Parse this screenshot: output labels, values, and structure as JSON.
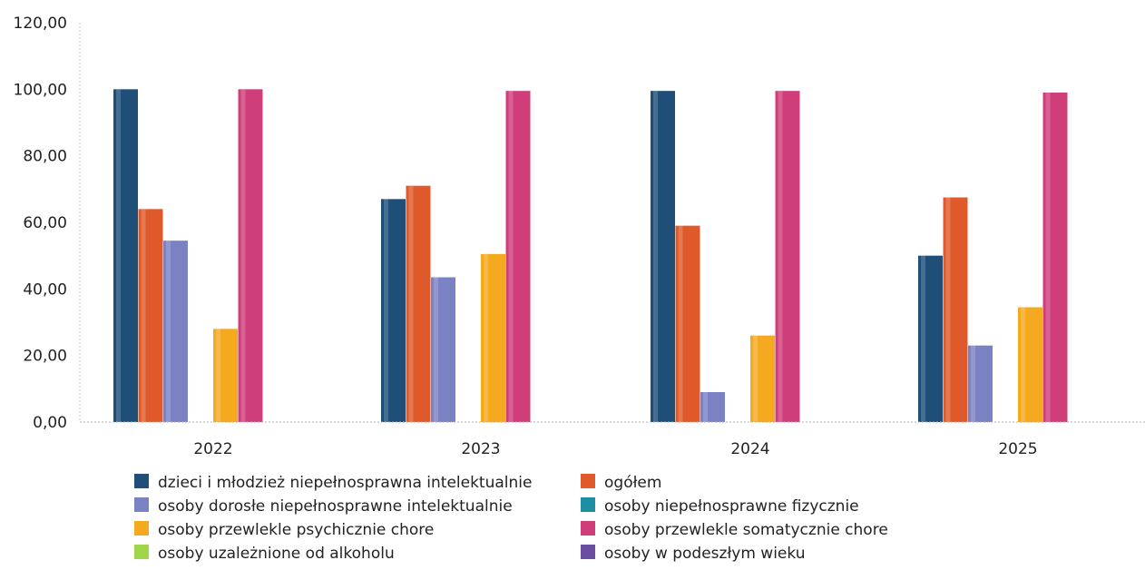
{
  "chart_data": {
    "type": "bar",
    "categories": [
      "2022",
      "2023",
      "2024",
      "2025"
    ],
    "ylim": [
      0,
      120
    ],
    "yticks": [
      "0,00",
      "20,00",
      "40,00",
      "60,00",
      "80,00",
      "100,00",
      "120,00"
    ],
    "grid": false,
    "legend_position": "bottom",
    "series": [
      {
        "name": "dzieci i młodzież niepełnosprawna intelektualnie",
        "color": "#1f4e79",
        "values": [
          100.0,
          67.0,
          99.5,
          50.0
        ]
      },
      {
        "name": "ogółem",
        "color": "#e0592a",
        "values": [
          64.0,
          71.0,
          59.0,
          67.5
        ]
      },
      {
        "name": "osoby dorosłe niepełnosprawne intelektualnie",
        "color": "#7b82c4",
        "values": [
          54.5,
          43.5,
          9.0,
          23.0
        ]
      },
      {
        "name": "osoby niepełnosprawne fizycznie",
        "color": "#1e8fa3",
        "values": [
          0,
          0,
          0,
          0
        ]
      },
      {
        "name": "osoby przewlekle psychicznie chore",
        "color": "#f4a91f",
        "values": [
          28.0,
          50.5,
          26.0,
          34.5
        ]
      },
      {
        "name": "osoby przewlekle somatycznie chore",
        "color": "#d03e7a",
        "values": [
          100.0,
          99.5,
          99.5,
          99.0
        ]
      },
      {
        "name": "osoby uzależnione od alkoholu",
        "color": "#9fd64a",
        "values": [
          0,
          0,
          0,
          0
        ]
      },
      {
        "name": "osoby w podeszłym wieku",
        "color": "#6a4fa0",
        "values": [
          0,
          0,
          0,
          0
        ]
      }
    ]
  }
}
